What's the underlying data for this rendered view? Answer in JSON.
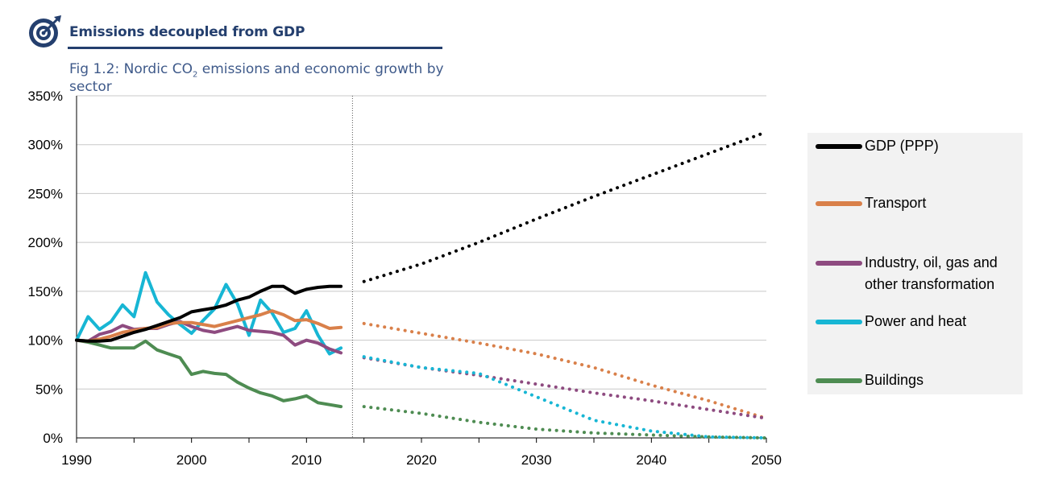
{
  "header": {
    "headline": "Emissions decoupled from GDP",
    "subtitle_prefix": "Fig 1.2: Nordic CO",
    "subtitle_sub": "2",
    "subtitle_suffix": " emissions and economic growth by sector",
    "accent_color": "#243f6e"
  },
  "chart_data": {
    "type": "line",
    "xlim": [
      1990,
      2050
    ],
    "ylim": [
      0,
      350
    ],
    "x_ticks": [
      1990,
      2000,
      2010,
      2020,
      2030,
      2040,
      2050
    ],
    "y_ticks": [
      0,
      50,
      100,
      150,
      200,
      250,
      300,
      350
    ],
    "y_tick_labels": [
      "0%",
      "50%",
      "100%",
      "150%",
      "200%",
      "250%",
      "300%",
      "350%"
    ],
    "grid": "horizontal",
    "divider_year": 2014,
    "legend_position": "right",
    "series": [
      {
        "name": "GDP (PPP)",
        "color": "#000000",
        "historical": [
          [
            1990,
            100
          ],
          [
            1991,
            99
          ],
          [
            1992,
            99
          ],
          [
            1993,
            100
          ],
          [
            1994,
            104
          ],
          [
            1995,
            108
          ],
          [
            1996,
            111
          ],
          [
            1997,
            115
          ],
          [
            1998,
            119
          ],
          [
            1999,
            123
          ],
          [
            2000,
            129
          ],
          [
            2001,
            131
          ],
          [
            2002,
            133
          ],
          [
            2003,
            136
          ],
          [
            2004,
            141
          ],
          [
            2005,
            144
          ],
          [
            2006,
            150
          ],
          [
            2007,
            155
          ],
          [
            2008,
            155
          ],
          [
            2009,
            148
          ],
          [
            2010,
            152
          ],
          [
            2011,
            154
          ],
          [
            2012,
            155
          ],
          [
            2013,
            155
          ]
        ],
        "projection": [
          [
            2015,
            160
          ],
          [
            2020,
            178
          ],
          [
            2025,
            200
          ],
          [
            2030,
            224
          ],
          [
            2035,
            247
          ],
          [
            2040,
            269
          ],
          [
            2045,
            291
          ],
          [
            2050,
            313
          ]
        ]
      },
      {
        "name": "Transport",
        "color": "#d9804a",
        "historical": [
          [
            1990,
            100
          ],
          [
            1991,
            99
          ],
          [
            1992,
            101
          ],
          [
            1993,
            104
          ],
          [
            1994,
            108
          ],
          [
            1995,
            110
          ],
          [
            1996,
            112
          ],
          [
            1997,
            113
          ],
          [
            1998,
            117
          ],
          [
            1999,
            118
          ],
          [
            2000,
            118
          ],
          [
            2001,
            116
          ],
          [
            2002,
            114
          ],
          [
            2003,
            117
          ],
          [
            2004,
            120
          ],
          [
            2005,
            123
          ],
          [
            2006,
            126
          ],
          [
            2007,
            130
          ],
          [
            2008,
            126
          ],
          [
            2009,
            120
          ],
          [
            2010,
            121
          ],
          [
            2011,
            117
          ],
          [
            2012,
            112
          ],
          [
            2013,
            113
          ]
        ],
        "projection": [
          [
            2015,
            117
          ],
          [
            2020,
            107
          ],
          [
            2025,
            97
          ],
          [
            2030,
            86
          ],
          [
            2035,
            72
          ],
          [
            2040,
            54
          ],
          [
            2045,
            38
          ],
          [
            2050,
            20
          ]
        ]
      },
      {
        "name": "Industry, oil, gas and other transformation",
        "color": "#8e4b80",
        "historical": [
          [
            1990,
            100
          ],
          [
            1991,
            99
          ],
          [
            1992,
            106
          ],
          [
            1993,
            109
          ],
          [
            1994,
            115
          ],
          [
            1995,
            111
          ],
          [
            1996,
            112
          ],
          [
            1997,
            112
          ],
          [
            1998,
            116
          ],
          [
            1999,
            119
          ],
          [
            2000,
            114
          ],
          [
            2001,
            110
          ],
          [
            2002,
            108
          ],
          [
            2003,
            111
          ],
          [
            2004,
            114
          ],
          [
            2005,
            110
          ],
          [
            2006,
            109
          ],
          [
            2007,
            108
          ],
          [
            2008,
            105
          ],
          [
            2009,
            95
          ],
          [
            2010,
            100
          ],
          [
            2011,
            97
          ],
          [
            2012,
            91
          ],
          [
            2013,
            87
          ]
        ],
        "projection": [
          [
            2015,
            82
          ],
          [
            2020,
            72
          ],
          [
            2025,
            64
          ],
          [
            2030,
            55
          ],
          [
            2035,
            46
          ],
          [
            2040,
            38
          ],
          [
            2045,
            29
          ],
          [
            2050,
            20
          ]
        ]
      },
      {
        "name": "Power and heat",
        "color": "#17b6d4",
        "historical": [
          [
            1990,
            100
          ],
          [
            1991,
            124
          ],
          [
            1992,
            111
          ],
          [
            1993,
            119
          ],
          [
            1994,
            136
          ],
          [
            1995,
            124
          ],
          [
            1996,
            169
          ],
          [
            1997,
            139
          ],
          [
            1998,
            126
          ],
          [
            1999,
            116
          ],
          [
            2000,
            107
          ],
          [
            2001,
            120
          ],
          [
            2002,
            132
          ],
          [
            2003,
            157
          ],
          [
            2004,
            137
          ],
          [
            2005,
            105
          ],
          [
            2006,
            141
          ],
          [
            2007,
            128
          ],
          [
            2008,
            108
          ],
          [
            2009,
            112
          ],
          [
            2010,
            130
          ],
          [
            2011,
            105
          ],
          [
            2012,
            86
          ],
          [
            2013,
            92
          ]
        ],
        "projection": [
          [
            2015,
            83
          ],
          [
            2020,
            72
          ],
          [
            2025,
            66
          ],
          [
            2030,
            42
          ],
          [
            2035,
            18
          ],
          [
            2040,
            7
          ],
          [
            2045,
            1
          ],
          [
            2050,
            0
          ]
        ]
      },
      {
        "name": "Buildings",
        "color": "#4e8c52",
        "historical": [
          [
            1990,
            100
          ],
          [
            1991,
            98
          ],
          [
            1992,
            95
          ],
          [
            1993,
            92
          ],
          [
            1994,
            92
          ],
          [
            1995,
            92
          ],
          [
            1996,
            99
          ],
          [
            1997,
            90
          ],
          [
            1998,
            86
          ],
          [
            1999,
            82
          ],
          [
            2000,
            65
          ],
          [
            2001,
            68
          ],
          [
            2002,
            66
          ],
          [
            2003,
            65
          ],
          [
            2004,
            57
          ],
          [
            2005,
            51
          ],
          [
            2006,
            46
          ],
          [
            2007,
            43
          ],
          [
            2008,
            38
          ],
          [
            2009,
            40
          ],
          [
            2010,
            43
          ],
          [
            2011,
            36
          ],
          [
            2012,
            34
          ],
          [
            2013,
            32
          ]
        ],
        "projection": [
          [
            2015,
            32
          ],
          [
            2020,
            25
          ],
          [
            2025,
            16
          ],
          [
            2030,
            9
          ],
          [
            2035,
            5
          ],
          [
            2040,
            3
          ],
          [
            2045,
            1
          ],
          [
            2050,
            0
          ]
        ]
      }
    ]
  }
}
